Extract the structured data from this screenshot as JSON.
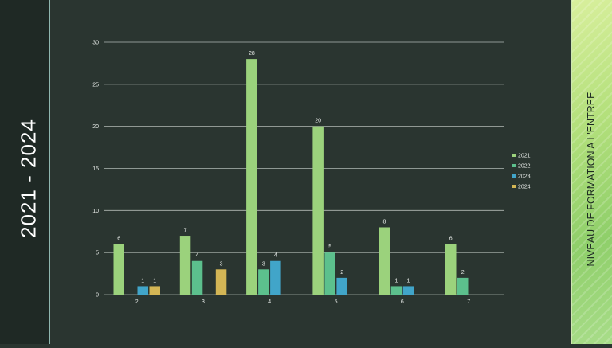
{
  "slide": {
    "left_title": "2021 - 2024",
    "right_title": "NIVEAU DE FORMATION A L'ENTREE"
  },
  "colors": {
    "background": "#2a3530",
    "left_band": "#1f2925",
    "text": "#e8ece9"
  },
  "chart_data": {
    "type": "bar",
    "categories": [
      "2",
      "3",
      "4",
      "5",
      "6",
      "7"
    ],
    "series": [
      {
        "name": "2021",
        "color": "#9bd27c",
        "values": [
          6,
          7,
          28,
          20,
          8,
          6
        ]
      },
      {
        "name": "2022",
        "color": "#5cc08d",
        "values": [
          null,
          4,
          3,
          5,
          1,
          2
        ]
      },
      {
        "name": "2023",
        "color": "#41a5c9",
        "values": [
          1,
          null,
          4,
          2,
          1,
          null
        ]
      },
      {
        "name": "2024",
        "color": "#d3b655",
        "values": [
          1,
          3,
          null,
          null,
          null,
          null
        ]
      }
    ],
    "ylim": [
      0,
      30
    ],
    "yticks": [
      0,
      5,
      10,
      15,
      20,
      25,
      30
    ],
    "grid": true,
    "data_labels": true,
    "legend": "right",
    "title": "",
    "xlabel": "",
    "ylabel": ""
  }
}
